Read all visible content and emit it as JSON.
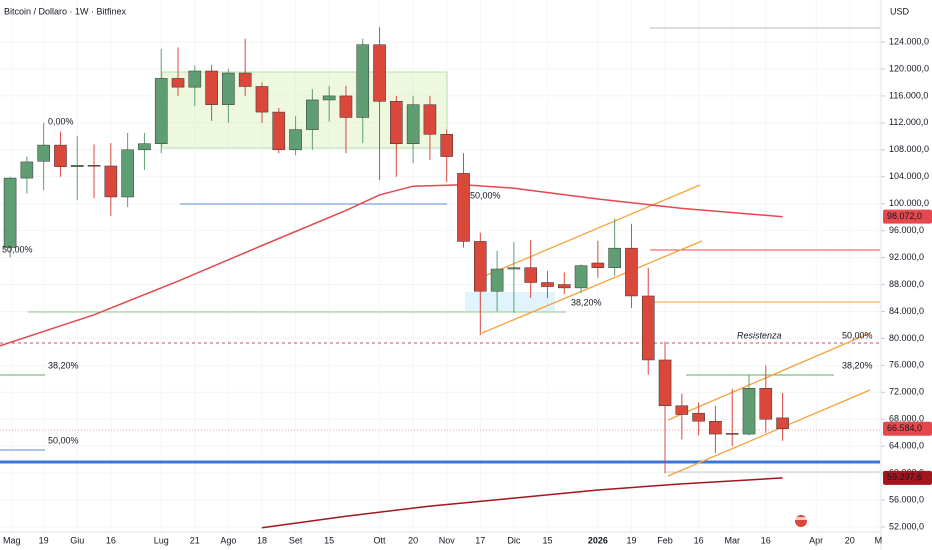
{
  "chart_data": {
    "type": "candlestick",
    "title": "Bitcoin / Dollaro · 1W · Bitfinex",
    "currency": "USD",
    "colors": {
      "up": "#5f9e72",
      "down": "#d9483b"
    },
    "xlim": [
      -0.6,
      51.8
    ],
    "ylim": [
      51260,
      130240
    ],
    "yticks": [
      {
        "value": 52000,
        "label": "52.000,0"
      },
      {
        "value": 56000,
        "label": "56.000,0"
      },
      {
        "value": 60000,
        "label": "60.000,0"
      },
      {
        "value": 64000,
        "label": "64.000,0"
      },
      {
        "value": 68000,
        "label": "68.000,0"
      },
      {
        "value": 72000,
        "label": "72.000,0"
      },
      {
        "value": 76000,
        "label": "76.000,0"
      },
      {
        "value": 80000,
        "label": "80.000,0"
      },
      {
        "value": 84000,
        "label": "84.000,0"
      },
      {
        "value": 88000,
        "label": "88.000,0"
      },
      {
        "value": 92000,
        "label": "92.000,0"
      },
      {
        "value": 96000,
        "label": "96.000,0"
      },
      {
        "value": 100000,
        "label": "100.000,0"
      },
      {
        "value": 104000,
        "label": "104.000,0"
      },
      {
        "value": 108000,
        "label": "108.000,0"
      },
      {
        "value": 112000,
        "label": "112.000,0"
      },
      {
        "value": 116000,
        "label": "116.000,0"
      },
      {
        "value": 120000,
        "label": "120.000,0"
      },
      {
        "value": 124000,
        "label": "124.000,0"
      }
    ],
    "xticks": [
      {
        "value": 0.1,
        "label": "Mag"
      },
      {
        "value": 2,
        "label": "19"
      },
      {
        "value": 4,
        "label": "Giu"
      },
      {
        "value": 6,
        "label": "16"
      },
      {
        "value": 9,
        "label": "Lug"
      },
      {
        "value": 11,
        "label": "21"
      },
      {
        "value": 13,
        "label": "Ago"
      },
      {
        "value": 15,
        "label": "18"
      },
      {
        "value": 17,
        "label": "Set"
      },
      {
        "value": 19,
        "label": "15"
      },
      {
        "value": 22,
        "label": "Ott"
      },
      {
        "value": 24,
        "label": "20"
      },
      {
        "value": 26,
        "label": "Nov"
      },
      {
        "value": 28,
        "label": "17"
      },
      {
        "value": 30,
        "label": "Dic"
      },
      {
        "value": 32,
        "label": "15"
      },
      {
        "value": 35,
        "label": "2026"
      },
      {
        "value": 37,
        "label": "19"
      },
      {
        "value": 39,
        "label": "Feb"
      },
      {
        "value": 41,
        "label": "16"
      },
      {
        "value": 43,
        "label": "Mar"
      },
      {
        "value": 45,
        "label": "16"
      },
      {
        "value": 48,
        "label": "Apr"
      },
      {
        "value": 50,
        "label": "20"
      },
      {
        "value": 51.7,
        "label": "M"
      }
    ],
    "x": [
      0,
      1,
      2,
      3,
      4,
      5,
      6,
      7,
      8,
      9,
      10,
      11,
      12,
      13,
      14,
      15,
      16,
      17,
      18,
      19,
      20,
      21,
      22,
      23,
      24,
      25,
      26,
      27,
      28,
      29,
      30,
      31,
      32,
      33,
      34,
      35,
      36,
      37,
      38,
      39,
      40,
      41,
      42,
      43,
      44,
      45,
      46
    ],
    "open": [
      93500,
      103800,
      106300,
      108700,
      105500,
      105700,
      105600,
      101000,
      108000,
      108900,
      118600,
      117300,
      119700,
      114700,
      119400,
      117400,
      113600,
      108000,
      111000,
      115400,
      116000,
      112800,
      123600,
      115200,
      108900,
      114700,
      110300,
      104500,
      94400,
      87000,
      90300,
      90500,
      88300,
      88000,
      87500,
      91200,
      90500,
      93400,
      86300,
      76800,
      70000,
      68900,
      67700,
      65900,
      65800,
      72600,
      68200
    ],
    "high": [
      104000,
      107000,
      112000,
      110700,
      110000,
      108800,
      109000,
      110500,
      110500,
      123000,
      123200,
      120500,
      120600,
      120000,
      124500,
      118000,
      114200,
      113000,
      117000,
      117500,
      117500,
      124500,
      126200,
      116000,
      116000,
      116000,
      111000,
      107500,
      95700,
      93000,
      94300,
      94600,
      90000,
      89800,
      91000,
      94500,
      97800,
      97000,
      90500,
      79500,
      71800,
      70500,
      70000,
      72500,
      74500,
      76000,
      71900
    ],
    "low": [
      92000,
      101500,
      102000,
      104000,
      100500,
      100800,
      98200,
      99500,
      105000,
      107500,
      116000,
      114500,
      112300,
      112000,
      116000,
      112000,
      107500,
      107200,
      108000,
      112200,
      107500,
      109000,
      103500,
      104000,
      106000,
      106500,
      103200,
      93500,
      80500,
      84000,
      83800,
      86000,
      86000,
      86600,
      86700,
      89000,
      89300,
      84500,
      74600,
      60000,
      65000,
      65600,
      63000,
      64000,
      65600,
      66000,
      64800
    ],
    "close": [
      103800,
      106200,
      108700,
      105500,
      105700,
      105600,
      101000,
      108000,
      108900,
      118600,
      117300,
      119700,
      114700,
      119400,
      117400,
      113600,
      108000,
      111000,
      115400,
      116000,
      112800,
      123600,
      115200,
      108900,
      114700,
      110300,
      107000,
      94400,
      87000,
      90300,
      90500,
      88300,
      87700,
      87500,
      90800,
      90500,
      93400,
      86300,
      76800,
      70000,
      68700,
      67700,
      65800,
      65800,
      72600,
      68000,
      66584
    ],
    "indicators": [
      {
        "color": "#e5484d",
        "x": [
          -0.6,
          5,
          10,
          15,
          20,
          22,
          24,
          27,
          30,
          35,
          40,
          46
        ],
        "values": [
          78900,
          83500,
          88500,
          93800,
          99000,
          101300,
          102600,
          102800,
          102300,
          100700,
          99300,
          98072
        ]
      },
      {
        "color": "#a3161b",
        "x": [
          15,
          20,
          25,
          30,
          35,
          40,
          46
        ],
        "values": [
          51900,
          53600,
          55100,
          56300,
          57500,
          58400,
          59297.6
        ]
      }
    ],
    "price_labels": [
      {
        "value": 98072,
        "label": "98.072,0",
        "color": "#e5484d"
      },
      {
        "value": 66584,
        "label": "66.584,0",
        "color": "#e5484d"
      },
      {
        "value": 59297.6,
        "label": "59.297,6",
        "color": "#a3161b"
      }
    ],
    "annotations": [
      "50,00%",
      "0,00%",
      "38,20%",
      "50,00%",
      "50,00%",
      "38,20%",
      "Resistenza",
      "50,00%",
      "38,20%"
    ]
  }
}
